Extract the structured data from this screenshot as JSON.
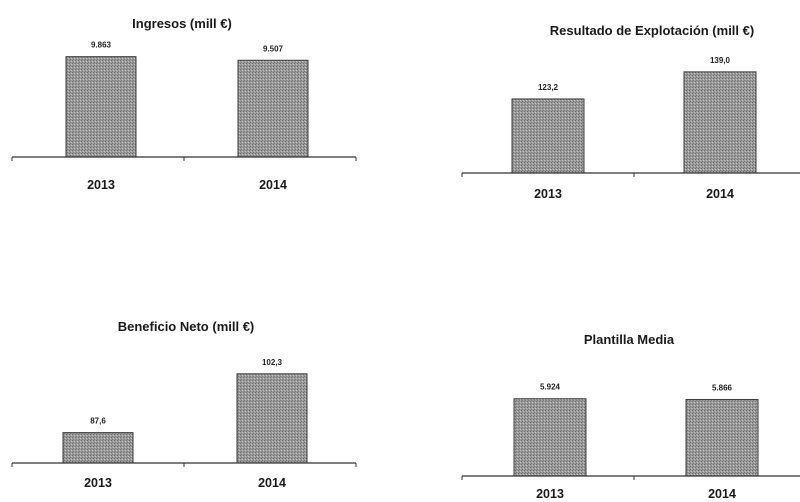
{
  "chart_data": [
    {
      "type": "bar",
      "title": "Ingresos (mill €)",
      "categories": [
        "2013",
        "2014"
      ],
      "values": [
        9863,
        9507
      ],
      "value_labels": [
        "9.863",
        "9.507"
      ],
      "ylim": [
        0,
        11500
      ],
      "grid": false
    },
    {
      "type": "bar",
      "title": "Resultado de Explotación (mill €)",
      "categories": [
        "2013",
        "2014"
      ],
      "values": [
        123.2,
        139.0
      ],
      "value_labels": [
        "123,2",
        "139,0"
      ],
      "ylim": [
        80,
        150
      ],
      "grid": false
    },
    {
      "type": "bar",
      "title": "Beneficio Neto (mill €)",
      "categories": [
        "2013",
        "2014"
      ],
      "values": [
        87.6,
        102.3
      ],
      "value_labels": [
        "87,6",
        "102,3"
      ],
      "ylim": [
        80,
        105
      ],
      "grid": false
    },
    {
      "type": "bar",
      "title": "Plantilla Media",
      "categories": [
        "2013",
        "2014"
      ],
      "values": [
        5924,
        5866
      ],
      "value_labels": [
        "5.924",
        "5.866"
      ],
      "ylim": [
        0,
        6900
      ],
      "grid": false
    }
  ]
}
